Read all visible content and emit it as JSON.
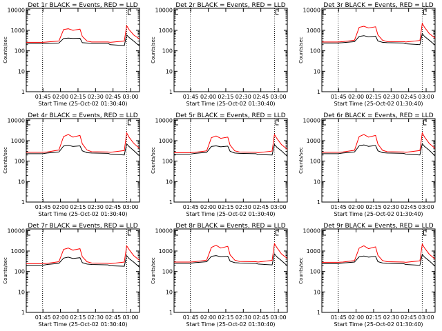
{
  "figure": {
    "xlabel": "Start Time (25-Oct-02 01:30:40)",
    "ylabel": "Counts/sec",
    "x_ticks": [
      "01:45",
      "02:00",
      "02:15",
      "02:30",
      "02:45",
      "03:00"
    ],
    "y_ticks": [
      "1",
      "10",
      "100",
      "1000",
      "10000"
    ],
    "colors": {
      "events": "#000000",
      "lld": "#ff0000",
      "axes": "#000000",
      "background": "#ffffff"
    }
  },
  "chart_data": [
    {
      "type": "line",
      "title": "Det 1r BLACK = Events, RED = LLD",
      "xlim_minutes_from_start": [
        0,
        97
      ],
      "ylim": [
        1,
        12000
      ],
      "yscale": "log",
      "markers_at_minutes": [
        14,
        86
      ],
      "series": [
        {
          "name": "Events",
          "color": "#000000",
          "x": [
            0,
            14,
            18,
            28,
            32,
            36,
            40,
            46,
            48,
            52,
            56,
            70,
            72,
            84,
            86,
            88,
            92,
            97
          ],
          "values": [
            230,
            230,
            230,
            240,
            400,
            420,
            400,
            410,
            250,
            240,
            230,
            230,
            200,
            180,
            600,
            450,
            300,
            170
          ]
        },
        {
          "name": "LLD",
          "color": "#ff0000",
          "x": [
            0,
            14,
            18,
            28,
            32,
            36,
            40,
            46,
            48,
            52,
            56,
            70,
            72,
            84,
            86,
            88,
            92,
            97
          ],
          "values": [
            260,
            260,
            270,
            300,
            1100,
            1200,
            1000,
            1150,
            500,
            300,
            270,
            270,
            260,
            300,
            1700,
            1100,
            600,
            380
          ]
        }
      ]
    },
    {
      "type": "line",
      "title": "Det 2r BLACK = Events, RED = LLD",
      "xlim_minutes_from_start": [
        0,
        97
      ],
      "ylim": [
        1,
        12000
      ],
      "yscale": "log",
      "markers_at_minutes": [
        14,
        86
      ],
      "series": []
    },
    {
      "type": "line",
      "title": "Det 3r BLACK = Events, RED = LLD",
      "xlim_minutes_from_start": [
        0,
        97
      ],
      "ylim": [
        1,
        12000
      ],
      "yscale": "log",
      "markers_at_minutes": [
        14,
        86
      ],
      "series": [
        {
          "name": "Events",
          "color": "#000000",
          "x": [
            0,
            14,
            18,
            28,
            32,
            36,
            40,
            46,
            48,
            52,
            56,
            70,
            72,
            84,
            86,
            88,
            92,
            97
          ],
          "values": [
            240,
            240,
            250,
            280,
            500,
            550,
            480,
            520,
            300,
            260,
            250,
            240,
            220,
            200,
            700,
            500,
            330,
            190
          ]
        },
        {
          "name": "LLD",
          "color": "#ff0000",
          "x": [
            0,
            14,
            18,
            28,
            32,
            36,
            40,
            46,
            48,
            52,
            56,
            70,
            72,
            84,
            86,
            88,
            92,
            97
          ],
          "values": [
            270,
            270,
            280,
            330,
            1400,
            1600,
            1300,
            1500,
            600,
            330,
            280,
            280,
            270,
            320,
            2200,
            1400,
            700,
            420
          ]
        }
      ]
    },
    {
      "type": "line",
      "title": "Det 4r BLACK = Events, RED = LLD",
      "xlim_minutes_from_start": [
        0,
        97
      ],
      "ylim": [
        1,
        12000
      ],
      "yscale": "log",
      "markers_at_minutes": [
        14,
        86
      ],
      "series": [
        {
          "name": "Events",
          "color": "#000000",
          "x": [
            0,
            14,
            18,
            28,
            32,
            36,
            40,
            46,
            48,
            52,
            56,
            70,
            72,
            84,
            86,
            88,
            92,
            97
          ],
          "values": [
            230,
            230,
            250,
            280,
            550,
            600,
            520,
            560,
            320,
            260,
            250,
            240,
            220,
            200,
            700,
            520,
            330,
            180
          ]
        },
        {
          "name": "LLD",
          "color": "#ff0000",
          "x": [
            0,
            14,
            18,
            28,
            32,
            36,
            40,
            46,
            48,
            52,
            56,
            70,
            72,
            84,
            86,
            88,
            92,
            97
          ],
          "values": [
            270,
            270,
            280,
            350,
            1600,
            2000,
            1500,
            1800,
            700,
            350,
            290,
            280,
            270,
            330,
            2400,
            1500,
            750,
            420
          ]
        }
      ]
    },
    {
      "type": "line",
      "title": "Det 5r BLACK = Events, RED = LLD",
      "xlim_minutes_from_start": [
        0,
        97
      ],
      "ylim": [
        1,
        12000
      ],
      "yscale": "log",
      "markers_at_minutes": [
        14,
        86
      ],
      "series": [
        {
          "name": "Events",
          "color": "#000000",
          "x": [
            0,
            14,
            18,
            28,
            32,
            36,
            40,
            46,
            48,
            52,
            56,
            70,
            72,
            84,
            86,
            88,
            92,
            97
          ],
          "values": [
            220,
            220,
            240,
            270,
            520,
            560,
            500,
            540,
            300,
            250,
            240,
            230,
            210,
            200,
            650,
            480,
            320,
            170
          ]
        },
        {
          "name": "LLD",
          "color": "#ff0000",
          "x": [
            0,
            14,
            18,
            28,
            32,
            36,
            40,
            46,
            48,
            52,
            56,
            70,
            72,
            84,
            86,
            88,
            92,
            97
          ],
          "values": [
            260,
            260,
            270,
            320,
            1400,
            1700,
            1300,
            1500,
            600,
            320,
            280,
            270,
            260,
            310,
            2000,
            1300,
            650,
            380
          ]
        }
      ]
    },
    {
      "type": "line",
      "title": "Det 6r BLACK = Events, RED = LLD",
      "xlim_minutes_from_start": [
        0,
        97
      ],
      "ylim": [
        1,
        12000
      ],
      "yscale": "log",
      "markers_at_minutes": [
        14,
        86
      ],
      "series": [
        {
          "name": "Events",
          "color": "#000000",
          "x": [
            0,
            14,
            18,
            28,
            32,
            36,
            40,
            46,
            48,
            52,
            56,
            70,
            72,
            84,
            86,
            88,
            92,
            97
          ],
          "values": [
            230,
            230,
            250,
            280,
            560,
            620,
            530,
            580,
            320,
            260,
            250,
            240,
            220,
            200,
            720,
            520,
            340,
            180
          ]
        },
        {
          "name": "LLD",
          "color": "#ff0000",
          "x": [
            0,
            14,
            18,
            28,
            32,
            36,
            40,
            46,
            48,
            52,
            56,
            70,
            72,
            84,
            86,
            88,
            92,
            97
          ],
          "values": [
            270,
            270,
            280,
            340,
            1600,
            2000,
            1500,
            1800,
            680,
            340,
            290,
            280,
            270,
            330,
            2400,
            1500,
            740,
            420
          ]
        }
      ]
    },
    {
      "type": "line",
      "title": "Det 7r BLACK = Events, RED = LLD",
      "xlim_minutes_from_start": [
        0,
        97
      ],
      "ylim": [
        1,
        12000
      ],
      "yscale": "log",
      "markers_at_minutes": [
        14,
        86
      ],
      "series": [
        {
          "name": "Events",
          "color": "#000000",
          "x": [
            0,
            14,
            18,
            28,
            32,
            36,
            40,
            46,
            48,
            52,
            56,
            70,
            72,
            84,
            86,
            88,
            92,
            97
          ],
          "values": [
            200,
            200,
            220,
            250,
            450,
            500,
            430,
            470,
            270,
            230,
            220,
            210,
            190,
            180,
            600,
            430,
            290,
            160
          ]
        },
        {
          "name": "LLD",
          "color": "#ff0000",
          "x": [
            0,
            14,
            18,
            28,
            32,
            36,
            40,
            46,
            48,
            52,
            56,
            70,
            72,
            84,
            86,
            88,
            92,
            97
          ],
          "values": [
            240,
            240,
            250,
            300,
            1200,
            1400,
            1100,
            1300,
            520,
            300,
            260,
            250,
            240,
            290,
            1800,
            1200,
            600,
            350
          ]
        }
      ]
    },
    {
      "type": "line",
      "title": "Det 8r BLACK = Events, RED = LLD",
      "xlim_minutes_from_start": [
        0,
        97
      ],
      "ylim": [
        1,
        12000
      ],
      "yscale": "log",
      "markers_at_minutes": [
        14,
        86
      ],
      "series": [
        {
          "name": "Events",
          "color": "#000000",
          "x": [
            0,
            14,
            18,
            28,
            32,
            36,
            40,
            46,
            48,
            52,
            56,
            70,
            72,
            84,
            86,
            88,
            92,
            97
          ],
          "values": [
            250,
            250,
            270,
            300,
            550,
            600,
            520,
            560,
            320,
            270,
            260,
            250,
            230,
            210,
            720,
            520,
            340,
            190
          ]
        },
        {
          "name": "LLD",
          "color": "#ff0000",
          "x": [
            0,
            14,
            18,
            28,
            32,
            36,
            40,
            46,
            48,
            52,
            56,
            70,
            72,
            84,
            86,
            88,
            92,
            97
          ],
          "values": [
            290,
            290,
            300,
            360,
            1500,
            1900,
            1400,
            1700,
            650,
            360,
            310,
            300,
            290,
            350,
            2300,
            1500,
            720,
            430
          ]
        }
      ]
    },
    {
      "type": "line",
      "title": "Det 9r BLACK = Events, RED = LLD",
      "xlim_minutes_from_start": [
        0,
        97
      ],
      "ylim": [
        1,
        12000
      ],
      "yscale": "log",
      "markers_at_minutes": [
        14,
        86
      ],
      "series": [
        {
          "name": "Events",
          "color": "#000000",
          "x": [
            0,
            14,
            18,
            28,
            32,
            36,
            40,
            46,
            48,
            52,
            56,
            70,
            72,
            84,
            86,
            88,
            92,
            97
          ],
          "values": [
            240,
            240,
            260,
            290,
            520,
            570,
            500,
            540,
            300,
            260,
            250,
            240,
            220,
            200,
            680,
            500,
            330,
            180
          ]
        },
        {
          "name": "LLD",
          "color": "#ff0000",
          "x": [
            0,
            14,
            18,
            28,
            32,
            36,
            40,
            46,
            48,
            52,
            56,
            70,
            72,
            84,
            86,
            88,
            92,
            97
          ],
          "values": [
            280,
            280,
            290,
            340,
            1400,
            1800,
            1300,
            1600,
            620,
            340,
            300,
            290,
            280,
            330,
            2200,
            1400,
            700,
            400
          ]
        }
      ]
    }
  ]
}
